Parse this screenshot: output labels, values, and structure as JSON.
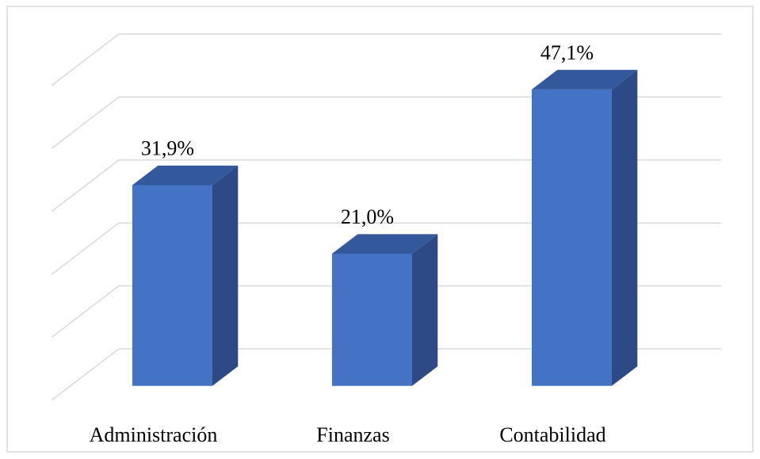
{
  "chart_data": {
    "type": "bar3d",
    "categories": [
      "Administración",
      "Finanzas",
      "Contabilidad"
    ],
    "values": [
      31.9,
      21.0,
      47.1
    ],
    "value_labels": [
      "31,9%",
      "21,0%",
      "47,1%"
    ],
    "color": "#4472c4",
    "ylim": [
      0,
      50
    ],
    "yticks": [
      0,
      10,
      20,
      30,
      40,
      50
    ],
    "grid": true
  }
}
